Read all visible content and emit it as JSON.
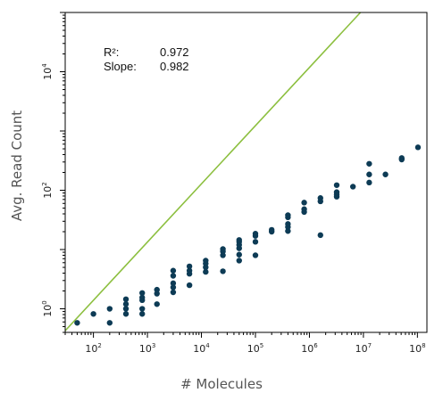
{
  "chart_data": {
    "type": "scatter",
    "title": "",
    "xlabel": "# Molecules",
    "ylabel": "Avg. Read Count",
    "x_scale": "log",
    "y_scale": "log",
    "xlim": [
      30,
      150000000
    ],
    "ylim": [
      0.4,
      100000
    ],
    "x_ticks": [
      {
        "value": 100,
        "base": "10",
        "exp": "2"
      },
      {
        "value": 1000,
        "base": "10",
        "exp": "3"
      },
      {
        "value": 10000,
        "base": "10",
        "exp": "4"
      },
      {
        "value": 100000,
        "base": "10",
        "exp": "5"
      },
      {
        "value": 1000000,
        "base": "10",
        "exp": "6"
      },
      {
        "value": 10000000,
        "base": "10",
        "exp": "7"
      },
      {
        "value": 100000000,
        "base": "10",
        "exp": "8"
      }
    ],
    "y_ticks": [
      {
        "value": 1,
        "base": "10",
        "exp": "0"
      },
      {
        "value": 100,
        "base": "10",
        "exp": "2"
      },
      {
        "value": 10000,
        "base": "10",
        "exp": "4"
      }
    ],
    "grid": false,
    "point_color": "#0d3b55",
    "fit_color": "#8cbf3f",
    "fit_line": {
      "slope": 0.982,
      "intercept_log10": -1.82
    },
    "stats": {
      "r2_label": "R²:",
      "r2_value": "0.972",
      "slope_label": "Slope:",
      "slope_value": "0.982"
    },
    "points": [
      [
        50,
        0.58
      ],
      [
        100,
        0.82
      ],
      [
        200,
        0.58
      ],
      [
        200,
        1.0
      ],
      [
        400,
        0.82
      ],
      [
        400,
        1.0
      ],
      [
        400,
        1.2
      ],
      [
        400,
        1.45
      ],
      [
        800,
        0.82
      ],
      [
        800,
        1.0
      ],
      [
        800,
        1.4
      ],
      [
        800,
        1.55
      ],
      [
        800,
        1.85
      ],
      [
        1500,
        1.2
      ],
      [
        1500,
        1.8
      ],
      [
        1500,
        2.1
      ],
      [
        3000,
        1.9
      ],
      [
        3000,
        2.3
      ],
      [
        3000,
        2.7
      ],
      [
        3000,
        3.6
      ],
      [
        3000,
        4.4
      ],
      [
        6000,
        2.5
      ],
      [
        6000,
        3.9
      ],
      [
        6000,
        4.4
      ],
      [
        6000,
        5.2
      ],
      [
        12000,
        4.2
      ],
      [
        12000,
        5.0
      ],
      [
        12000,
        5.8
      ],
      [
        12000,
        6.5
      ],
      [
        25000,
        4.3
      ],
      [
        25000,
        8.0
      ],
      [
        25000,
        9.3
      ],
      [
        25000,
        10.2
      ],
      [
        50000,
        6.5
      ],
      [
        50000,
        8.2
      ],
      [
        50000,
        10.5
      ],
      [
        50000,
        12.0
      ],
      [
        50000,
        13.5
      ],
      [
        50000,
        14.5
      ],
      [
        100000,
        8.0
      ],
      [
        100000,
        13.5
      ],
      [
        100000,
        17.0
      ],
      [
        100000,
        18.5
      ],
      [
        200000,
        20.0
      ],
      [
        200000,
        21.5
      ],
      [
        400000,
        20.5
      ],
      [
        400000,
        24.0
      ],
      [
        400000,
        27.0
      ],
      [
        400000,
        35.0
      ],
      [
        400000,
        38.0
      ],
      [
        800000,
        43.0
      ],
      [
        800000,
        48.0
      ],
      [
        800000,
        62.0
      ],
      [
        1600000,
        17.5
      ],
      [
        1600000,
        65.0
      ],
      [
        1600000,
        74.0
      ],
      [
        3200000,
        78.0
      ],
      [
        3200000,
        85.0
      ],
      [
        3200000,
        93.0
      ],
      [
        3200000,
        122.0
      ],
      [
        6400000,
        115.0
      ],
      [
        12800000,
        135.0
      ],
      [
        12800000,
        185.0
      ],
      [
        12800000,
        280.0
      ],
      [
        25600000,
        185.0
      ],
      [
        51200000,
        330.0
      ],
      [
        51200000,
        350.0
      ],
      [
        102400000,
        530.0
      ]
    ]
  }
}
